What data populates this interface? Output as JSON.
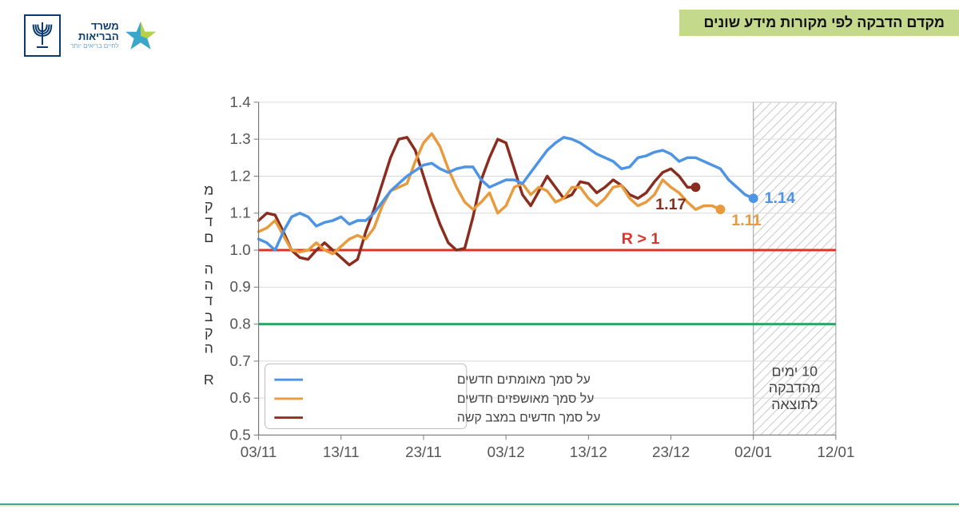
{
  "title": "מקדם הדבקה לפי מקורות מידע שונים",
  "logo": {
    "line1": "משרד",
    "line2": "הבריאות",
    "tagline": "לחיים בריאים יותר",
    "star_colors": {
      "blue": "#3aa6c9",
      "green": "#b6d14a"
    },
    "menorah_color": "#0b3a6f"
  },
  "chart": {
    "type": "line",
    "yaxis_title": "מקדם ההדבקה R",
    "ylim": [
      0.5,
      1.4
    ],
    "yticks": [
      0.5,
      0.6,
      0.7,
      0.8,
      0.9,
      1.0,
      1.1,
      1.2,
      1.3,
      1.4
    ],
    "xlim_days": [
      0,
      70
    ],
    "xticks": [
      {
        "t": 0,
        "label": "03/11"
      },
      {
        "t": 10,
        "label": "13/11"
      },
      {
        "t": 20,
        "label": "23/11"
      },
      {
        "t": 30,
        "label": "03/12"
      },
      {
        "t": 40,
        "label": "13/12"
      },
      {
        "t": 50,
        "label": "23/12"
      },
      {
        "t": 60,
        "label": "02/01"
      },
      {
        "t": 70,
        "label": "12/01"
      }
    ],
    "grid_color": "#d9d9d9",
    "axis_color": "#777777",
    "background_color": "#ffffff",
    "shaded_region": {
      "from": 60,
      "to": 70,
      "pattern_color": "#9c9c9c",
      "label1": "10 ימים",
      "label2": "מהדבקה",
      "label3": "לתוצאה"
    },
    "reference_lines": [
      {
        "y": 1.0,
        "color": "#e0322d",
        "width": 3,
        "label": "R > 1"
      },
      {
        "y": 0.8,
        "color": "#2aa765",
        "width": 3
      }
    ],
    "series": [
      {
        "name": "confirmed",
        "legend": "על סמך מאומתים חדשים",
        "color": "#4d94e5",
        "line_width": 3.5,
        "end_value": "1.14",
        "end_marker_t": 60,
        "points": [
          [
            0,
            1.03
          ],
          [
            1,
            1.02
          ],
          [
            2,
            1.0
          ],
          [
            3,
            1.05
          ],
          [
            4,
            1.09
          ],
          [
            5,
            1.1
          ],
          [
            6,
            1.09
          ],
          [
            7,
            1.065
          ],
          [
            8,
            1.075
          ],
          [
            9,
            1.08
          ],
          [
            10,
            1.09
          ],
          [
            11,
            1.07
          ],
          [
            12,
            1.08
          ],
          [
            13,
            1.08
          ],
          [
            14,
            1.1
          ],
          [
            15,
            1.13
          ],
          [
            16,
            1.16
          ],
          [
            17,
            1.18
          ],
          [
            18,
            1.2
          ],
          [
            19,
            1.215
          ],
          [
            20,
            1.23
          ],
          [
            21,
            1.235
          ],
          [
            22,
            1.22
          ],
          [
            23,
            1.21
          ],
          [
            24,
            1.22
          ],
          [
            25,
            1.225
          ],
          [
            26,
            1.225
          ],
          [
            27,
            1.19
          ],
          [
            28,
            1.17
          ],
          [
            29,
            1.18
          ],
          [
            30,
            1.19
          ],
          [
            31,
            1.19
          ],
          [
            32,
            1.18
          ],
          [
            33,
            1.21
          ],
          [
            34,
            1.24
          ],
          [
            35,
            1.27
          ],
          [
            36,
            1.29
          ],
          [
            37,
            1.305
          ],
          [
            38,
            1.3
          ],
          [
            39,
            1.29
          ],
          [
            40,
            1.275
          ],
          [
            41,
            1.26
          ],
          [
            42,
            1.25
          ],
          [
            43,
            1.24
          ],
          [
            44,
            1.22
          ],
          [
            45,
            1.225
          ],
          [
            46,
            1.25
          ],
          [
            47,
            1.255
          ],
          [
            48,
            1.265
          ],
          [
            49,
            1.27
          ],
          [
            50,
            1.26
          ],
          [
            51,
            1.24
          ],
          [
            52,
            1.25
          ],
          [
            53,
            1.25
          ],
          [
            54,
            1.24
          ],
          [
            55,
            1.23
          ],
          [
            56,
            1.22
          ],
          [
            57,
            1.19
          ],
          [
            58,
            1.17
          ],
          [
            59,
            1.15
          ],
          [
            60,
            1.14
          ]
        ]
      },
      {
        "name": "hospitalized",
        "legend": "על סמך מאושפזים חדשים",
        "color": "#e89a3c",
        "line_width": 3.5,
        "end_value": "1.11",
        "end_marker_t": 56,
        "points": [
          [
            0,
            1.05
          ],
          [
            1,
            1.06
          ],
          [
            2,
            1.08
          ],
          [
            3,
            1.04
          ],
          [
            4,
            1.0
          ],
          [
            5,
            0.995
          ],
          [
            6,
            1.0
          ],
          [
            7,
            1.02
          ],
          [
            8,
            1.0
          ],
          [
            9,
            0.99
          ],
          [
            10,
            1.01
          ],
          [
            11,
            1.03
          ],
          [
            12,
            1.04
          ],
          [
            13,
            1.03
          ],
          [
            14,
            1.06
          ],
          [
            15,
            1.12
          ],
          [
            16,
            1.16
          ],
          [
            17,
            1.17
          ],
          [
            18,
            1.18
          ],
          [
            19,
            1.24
          ],
          [
            20,
            1.29
          ],
          [
            21,
            1.315
          ],
          [
            22,
            1.28
          ],
          [
            23,
            1.22
          ],
          [
            24,
            1.17
          ],
          [
            25,
            1.13
          ],
          [
            26,
            1.11
          ],
          [
            27,
            1.13
          ],
          [
            28,
            1.155
          ],
          [
            29,
            1.1
          ],
          [
            30,
            1.12
          ],
          [
            31,
            1.17
          ],
          [
            32,
            1.18
          ],
          [
            33,
            1.15
          ],
          [
            34,
            1.17
          ],
          [
            35,
            1.16
          ],
          [
            36,
            1.13
          ],
          [
            37,
            1.14
          ],
          [
            38,
            1.17
          ],
          [
            39,
            1.17
          ],
          [
            40,
            1.14
          ],
          [
            41,
            1.12
          ],
          [
            42,
            1.14
          ],
          [
            43,
            1.17
          ],
          [
            44,
            1.175
          ],
          [
            45,
            1.14
          ],
          [
            46,
            1.12
          ],
          [
            47,
            1.13
          ],
          [
            48,
            1.15
          ],
          [
            49,
            1.19
          ],
          [
            50,
            1.17
          ],
          [
            51,
            1.155
          ],
          [
            52,
            1.13
          ],
          [
            53,
            1.11
          ],
          [
            54,
            1.12
          ],
          [
            55,
            1.12
          ],
          [
            56,
            1.11
          ]
        ]
      },
      {
        "name": "severe",
        "legend": "על סמך חדשים במצב קשה",
        "color": "#8a2d1e",
        "line_width": 3.5,
        "end_value": "1.17",
        "end_marker_t": 53,
        "points": [
          [
            0,
            1.08
          ],
          [
            1,
            1.1
          ],
          [
            2,
            1.095
          ],
          [
            3,
            1.05
          ],
          [
            4,
            1.0
          ],
          [
            5,
            0.98
          ],
          [
            6,
            0.975
          ],
          [
            7,
            1.0
          ],
          [
            8,
            1.02
          ],
          [
            9,
            1.0
          ],
          [
            10,
            0.98
          ],
          [
            11,
            0.96
          ],
          [
            12,
            0.975
          ],
          [
            13,
            1.05
          ],
          [
            14,
            1.11
          ],
          [
            15,
            1.18
          ],
          [
            16,
            1.25
          ],
          [
            17,
            1.3
          ],
          [
            18,
            1.305
          ],
          [
            19,
            1.27
          ],
          [
            20,
            1.2
          ],
          [
            21,
            1.13
          ],
          [
            22,
            1.07
          ],
          [
            23,
            1.02
          ],
          [
            24,
            1.0
          ],
          [
            25,
            1.005
          ],
          [
            26,
            1.09
          ],
          [
            27,
            1.19
          ],
          [
            28,
            1.25
          ],
          [
            29,
            1.3
          ],
          [
            30,
            1.29
          ],
          [
            31,
            1.22
          ],
          [
            32,
            1.15
          ],
          [
            33,
            1.12
          ],
          [
            34,
            1.16
          ],
          [
            35,
            1.2
          ],
          [
            36,
            1.17
          ],
          [
            37,
            1.14
          ],
          [
            38,
            1.15
          ],
          [
            39,
            1.185
          ],
          [
            40,
            1.18
          ],
          [
            41,
            1.155
          ],
          [
            42,
            1.17
          ],
          [
            43,
            1.19
          ],
          [
            44,
            1.175
          ],
          [
            45,
            1.15
          ],
          [
            46,
            1.14
          ],
          [
            47,
            1.155
          ],
          [
            48,
            1.185
          ],
          [
            49,
            1.21
          ],
          [
            50,
            1.22
          ],
          [
            51,
            1.2
          ],
          [
            52,
            1.17
          ],
          [
            53,
            1.17
          ]
        ]
      }
    ]
  },
  "colors": {
    "bottom_line1": "#0a7f8a",
    "bottom_line2": "#bcdc8f"
  }
}
